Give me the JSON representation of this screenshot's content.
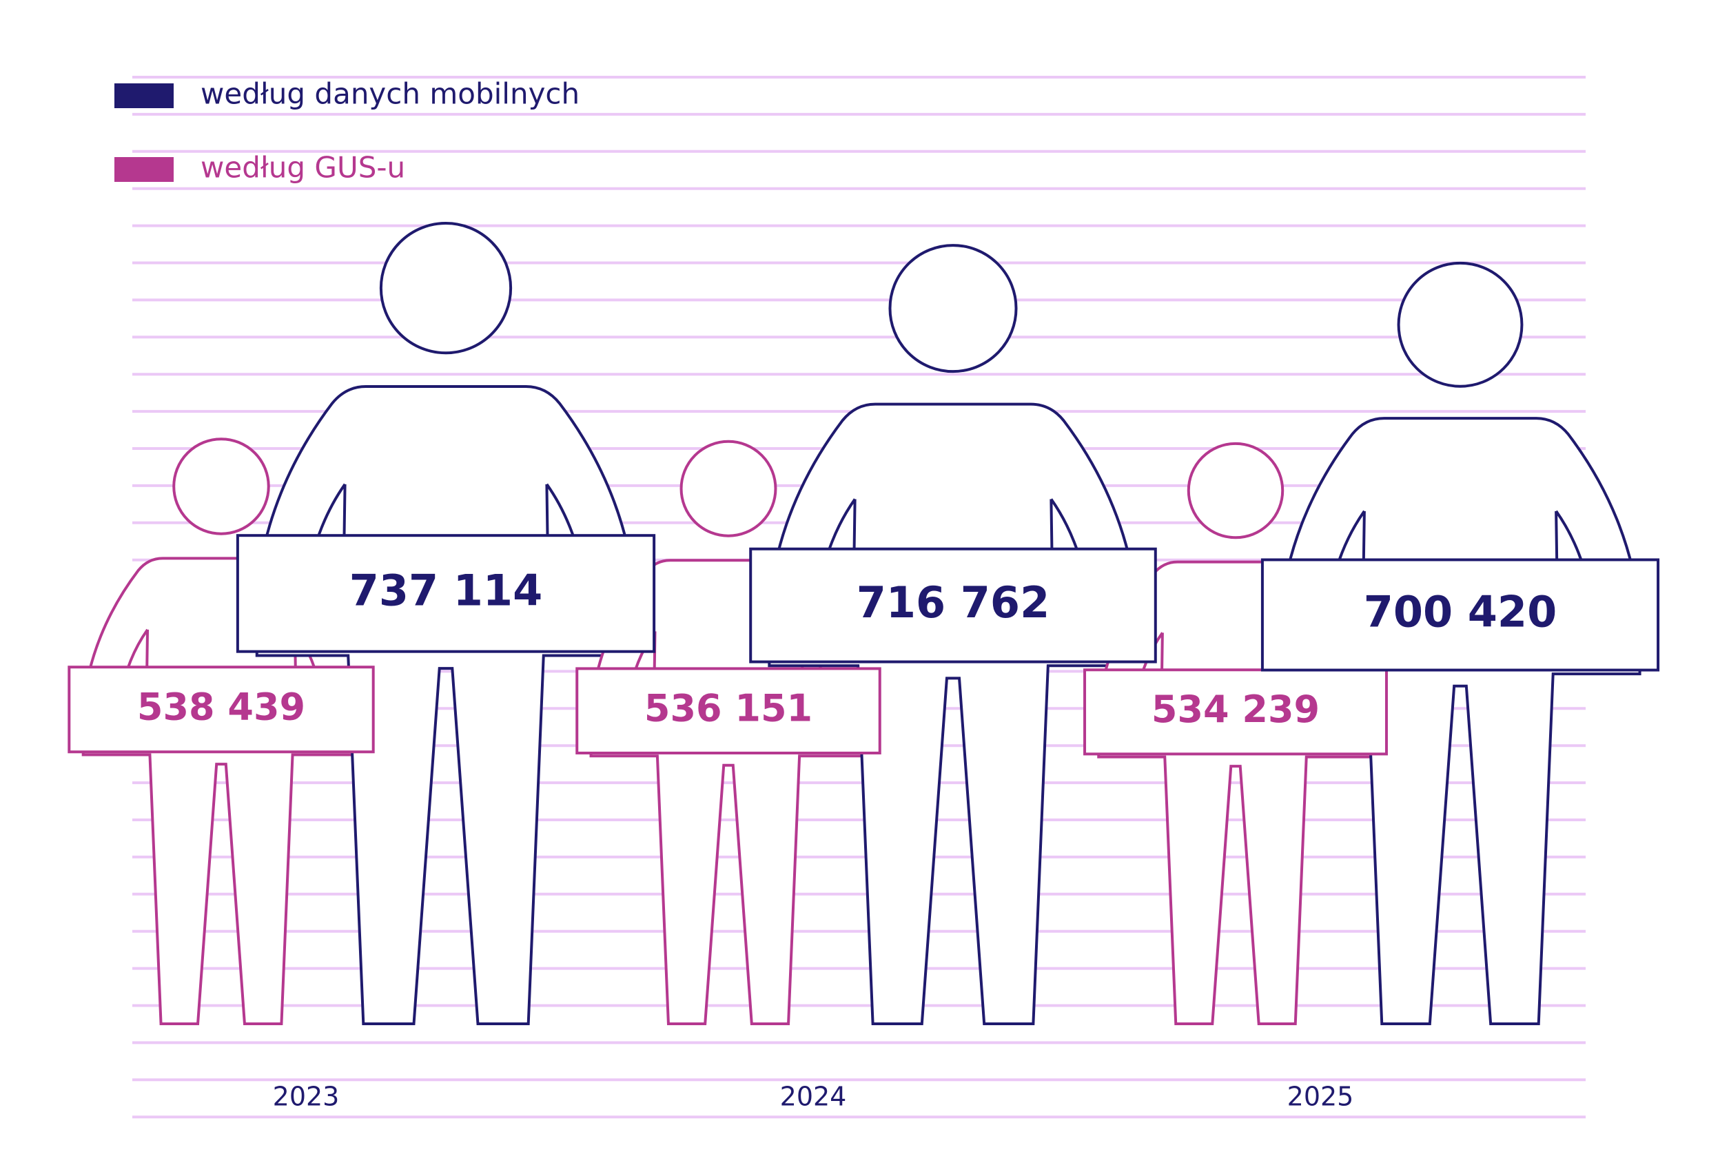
{
  "chart_data": {
    "type": "pictogram",
    "categories": [
      "2023",
      "2024",
      "2025"
    ],
    "series": [
      {
        "name": "według danych mobilnych",
        "color": "#1f1a6e",
        "values": [
          737114,
          716762,
          700420
        ],
        "value_labels": [
          "737 114",
          "716 762",
          "700 420"
        ]
      },
      {
        "name": "według GUS-u",
        "color": "#b5388f",
        "values": [
          538439,
          536151,
          534239
        ],
        "value_labels": [
          "538 439",
          "536 151",
          "534 239"
        ]
      }
    ]
  }
}
